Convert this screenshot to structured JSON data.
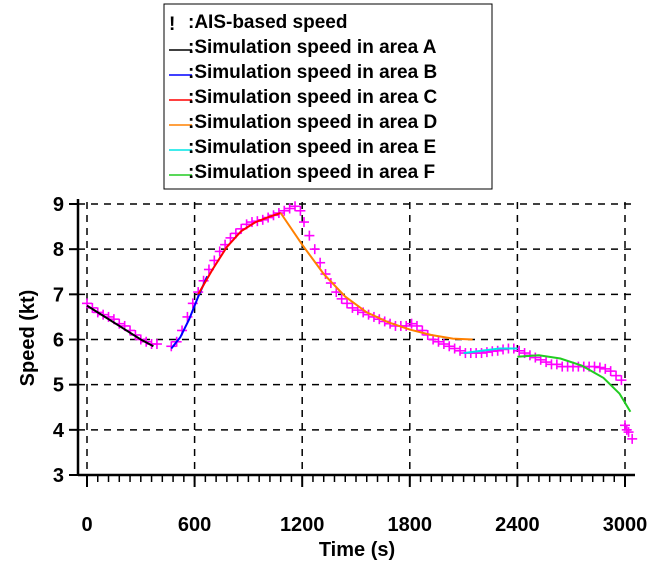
{
  "chart_data": {
    "type": "line",
    "xlabel": "Time (s)",
    "ylabel": "Speed (kt)",
    "xlim": [
      0,
      3000
    ],
    "ylim": [
      3,
      9
    ],
    "x_ticks": [
      0,
      600,
      1200,
      1800,
      2400,
      3000
    ],
    "y_ticks": [
      3,
      4,
      5,
      6,
      7,
      8,
      9
    ],
    "grid": true,
    "legend_position": "top-center",
    "legend": [
      "!  :AIS-based speed",
      ":Simulation speed in area A",
      ":Simulation speed in area B",
      ":Simulation speed in area C",
      ":Simulation speed in area D",
      ":Simulation speed in area E",
      ":Simulation speed in area F"
    ],
    "series": [
      {
        "name": ":AIS-based speed",
        "kind": "scatter",
        "marker": "+",
        "color": "#ff00ff",
        "points": [
          [
            0,
            6.8
          ],
          [
            30,
            6.7
          ],
          [
            60,
            6.6
          ],
          [
            90,
            6.55
          ],
          [
            120,
            6.5
          ],
          [
            150,
            6.45
          ],
          [
            180,
            6.35
          ],
          [
            210,
            6.3
          ],
          [
            240,
            6.2
          ],
          [
            270,
            6.1
          ],
          [
            300,
            6.0
          ],
          [
            330,
            5.95
          ],
          [
            360,
            5.9
          ],
          [
            390,
            5.9
          ],
          [
            470,
            5.85
          ],
          [
            500,
            5.95
          ],
          [
            530,
            6.2
          ],
          [
            560,
            6.5
          ],
          [
            590,
            6.8
          ],
          [
            620,
            7.05
          ],
          [
            650,
            7.3
          ],
          [
            680,
            7.55
          ],
          [
            710,
            7.75
          ],
          [
            740,
            7.95
          ],
          [
            770,
            8.1
          ],
          [
            800,
            8.25
          ],
          [
            830,
            8.35
          ],
          [
            860,
            8.45
          ],
          [
            890,
            8.55
          ],
          [
            920,
            8.6
          ],
          [
            950,
            8.62
          ],
          [
            980,
            8.65
          ],
          [
            1010,
            8.7
          ],
          [
            1040,
            8.75
          ],
          [
            1070,
            8.8
          ],
          [
            1100,
            8.85
          ],
          [
            1130,
            8.9
          ],
          [
            1160,
            8.95
          ],
          [
            1190,
            8.85
          ],
          [
            1210,
            8.6
          ],
          [
            1240,
            8.3
          ],
          [
            1270,
            8.0
          ],
          [
            1300,
            7.7
          ],
          [
            1330,
            7.45
          ],
          [
            1360,
            7.25
          ],
          [
            1390,
            7.05
          ],
          [
            1420,
            6.9
          ],
          [
            1450,
            6.8
          ],
          [
            1480,
            6.7
          ],
          [
            1510,
            6.65
          ],
          [
            1540,
            6.6
          ],
          [
            1570,
            6.55
          ],
          [
            1600,
            6.5
          ],
          [
            1630,
            6.45
          ],
          [
            1660,
            6.4
          ],
          [
            1690,
            6.35
          ],
          [
            1720,
            6.3
          ],
          [
            1750,
            6.3
          ],
          [
            1780,
            6.3
          ],
          [
            1810,
            6.35
          ],
          [
            1840,
            6.3
          ],
          [
            1870,
            6.2
          ],
          [
            1900,
            6.1
          ],
          [
            1930,
            6.0
          ],
          [
            1960,
            5.95
          ],
          [
            1990,
            5.9
          ],
          [
            2020,
            5.85
          ],
          [
            2050,
            5.8
          ],
          [
            2080,
            5.75
          ],
          [
            2110,
            5.7
          ],
          [
            2140,
            5.7
          ],
          [
            2170,
            5.7
          ],
          [
            2200,
            5.7
          ],
          [
            2230,
            5.72
          ],
          [
            2260,
            5.74
          ],
          [
            2290,
            5.75
          ],
          [
            2320,
            5.78
          ],
          [
            2350,
            5.8
          ],
          [
            2380,
            5.8
          ],
          [
            2410,
            5.75
          ],
          [
            2440,
            5.7
          ],
          [
            2470,
            5.65
          ],
          [
            2500,
            5.6
          ],
          [
            2530,
            5.55
          ],
          [
            2560,
            5.5
          ],
          [
            2590,
            5.45
          ],
          [
            2620,
            5.45
          ],
          [
            2650,
            5.4
          ],
          [
            2680,
            5.4
          ],
          [
            2710,
            5.4
          ],
          [
            2740,
            5.4
          ],
          [
            2770,
            5.4
          ],
          [
            2800,
            5.4
          ],
          [
            2830,
            5.4
          ],
          [
            2860,
            5.38
          ],
          [
            2890,
            5.35
          ],
          [
            2920,
            5.3
          ],
          [
            2950,
            5.2
          ],
          [
            2980,
            5.1
          ],
          [
            3000,
            4.1
          ],
          [
            3010,
            4.0
          ],
          [
            3020,
            3.95
          ],
          [
            3040,
            3.8
          ]
        ]
      },
      {
        "name": ":Simulation speed in area A",
        "kind": "line",
        "color": "#000000",
        "points": [
          [
            0,
            6.75
          ],
          [
            100,
            6.5
          ],
          [
            200,
            6.25
          ],
          [
            300,
            6.0
          ],
          [
            370,
            5.85
          ]
        ]
      },
      {
        "name": ":Simulation speed in area B",
        "kind": "line",
        "color": "#0000ff",
        "points": [
          [
            470,
            5.8
          ],
          [
            520,
            6.05
          ],
          [
            570,
            6.45
          ],
          [
            620,
            6.95
          ],
          [
            670,
            7.4
          ]
        ]
      },
      {
        "name": ":Simulation speed in area C",
        "kind": "line",
        "color": "#ff0000",
        "points": [
          [
            620,
            7.0
          ],
          [
            700,
            7.55
          ],
          [
            780,
            8.05
          ],
          [
            860,
            8.4
          ],
          [
            940,
            8.6
          ],
          [
            1020,
            8.72
          ],
          [
            1080,
            8.8
          ]
        ]
      },
      {
        "name": ":Simulation speed in area D",
        "kind": "line",
        "color": "#ff8000",
        "points": [
          [
            1080,
            8.8
          ],
          [
            1200,
            8.1
          ],
          [
            1320,
            7.45
          ],
          [
            1440,
            6.95
          ],
          [
            1560,
            6.6
          ],
          [
            1680,
            6.38
          ],
          [
            1800,
            6.22
          ],
          [
            1920,
            6.1
          ],
          [
            2040,
            6.02
          ],
          [
            2150,
            6.0
          ]
        ]
      },
      {
        "name": ":Simulation speed in area E",
        "kind": "line",
        "color": "#00e5e5",
        "points": [
          [
            2100,
            5.7
          ],
          [
            2200,
            5.75
          ],
          [
            2300,
            5.8
          ],
          [
            2400,
            5.8
          ]
        ]
      },
      {
        "name": ":Simulation speed in area F",
        "kind": "line",
        "color": "#22cc22",
        "points": [
          [
            2400,
            5.62
          ],
          [
            2520,
            5.65
          ],
          [
            2640,
            5.58
          ],
          [
            2760,
            5.42
          ],
          [
            2880,
            5.15
          ],
          [
            2970,
            4.8
          ],
          [
            3030,
            4.4
          ]
        ]
      }
    ]
  }
}
